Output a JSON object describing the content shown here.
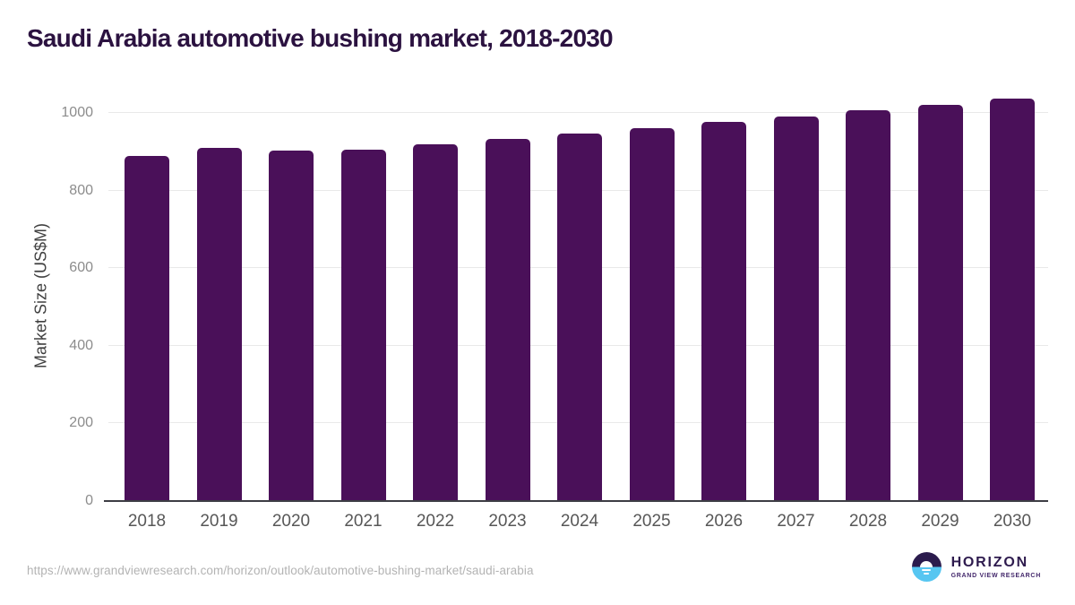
{
  "title": "Saudi Arabia automotive bushing market, 2018-2030",
  "chart_data": {
    "type": "bar",
    "title": "Saudi Arabia automotive bushing market, 2018-2030",
    "categories": [
      "2018",
      "2019",
      "2020",
      "2021",
      "2022",
      "2023",
      "2024",
      "2025",
      "2026",
      "2027",
      "2028",
      "2029",
      "2030"
    ],
    "values": [
      890,
      910,
      903,
      906,
      920,
      934,
      947,
      961,
      976,
      990,
      1006,
      1020,
      1037
    ],
    "xlabel": "",
    "ylabel": "Market Size (US$M)",
    "ylim": [
      0,
      1060
    ],
    "yticks": [
      0,
      200,
      400,
      600,
      800,
      1000
    ],
    "grid": true,
    "legend_position": "none",
    "bar_color": "#4a1059",
    "gridline_color": "#e9e9e9",
    "axis_line_color": "#3d3d44"
  },
  "footer": {
    "source_url": "https://www.grandviewresearch.com/horizon/outlook/automotive-bushing-market/saudi-arabia",
    "logo": {
      "name": "HORIZON",
      "subtitle": "GRAND VIEW RESEARCH",
      "mark_top_color": "#2b1b4d",
      "mark_bottom_color": "#57c6f1"
    }
  },
  "colors": {
    "title_text": "#2b1240",
    "axis_label_text": "#404040",
    "y_tick_text": "#8c8c8c",
    "x_tick_text": "#575757",
    "url_text": "#b3b3b3",
    "background": "#ffffff"
  }
}
